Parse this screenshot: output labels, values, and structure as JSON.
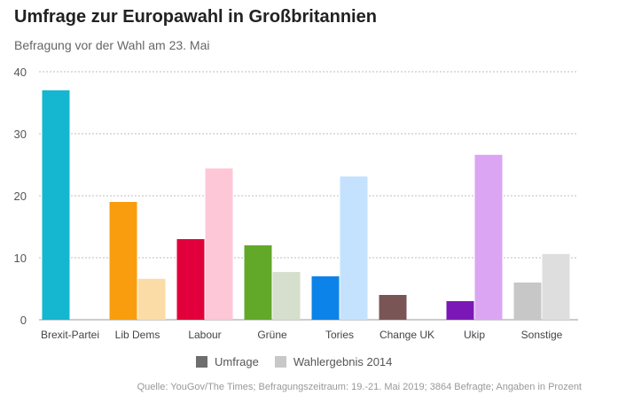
{
  "title": "Umfrage zur Europawahl in Großbritannien",
  "subtitle": "Befragung vor der Wahl am 23. Mai",
  "source": "Quelle: YouGov/The Times; Befragungszeitraum: 19.-21. Mai 2019; 3864 Befragte; Angaben in Prozent",
  "legend": [
    {
      "label": "Umfrage",
      "color": "#6e6e6e"
    },
    {
      "label": "Wahlergebnis 2014",
      "color": "#c8c8c8"
    }
  ],
  "chart_data": {
    "type": "bar",
    "title": "Umfrage zur Europawahl in Großbritannien",
    "subtitle": "Befragung vor der Wahl am 23. Mai",
    "xlabel": "",
    "ylabel": "",
    "ylim": [
      0,
      40
    ],
    "yticks": [
      0,
      10,
      20,
      30,
      40
    ],
    "grid": true,
    "legend_position": "bottom",
    "categories": [
      "Brexit-Partei",
      "Lib Dems",
      "Labour",
      "Grüne",
      "Tories",
      "Change UK",
      "Ukip",
      "Sonstige"
    ],
    "series": [
      {
        "name": "Umfrage",
        "values": [
          37,
          19,
          13,
          12,
          7,
          4,
          3,
          6
        ]
      },
      {
        "name": "Wahlergebnis 2014",
        "values": [
          null,
          6.6,
          24.4,
          7.7,
          23.1,
          null,
          26.6,
          10.6
        ]
      }
    ],
    "colors": {
      "Umfrage": [
        "#15b6d0",
        "#f99d0e",
        "#e1003b",
        "#62a929",
        "#0c83e8",
        "#7a5555",
        "#7b17b7",
        "#c7c7c7"
      ],
      "Wahlergebnis 2014": [
        "#a7e3ee",
        "#fcdca6",
        "#fdc7d7",
        "#d5dfcc",
        "#c4e2fd",
        "#d6c8c8",
        "#dca5f3",
        "#dedede"
      ]
    }
  }
}
